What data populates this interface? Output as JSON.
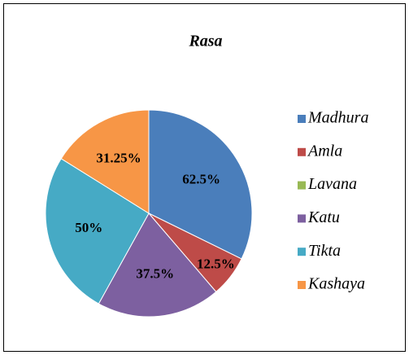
{
  "chart_data": {
    "type": "pie",
    "title": "Rasa",
    "categories": [
      "Madhura",
      "Amla",
      "Lavana",
      "Katu",
      "Tikta",
      "Kashaya"
    ],
    "values": [
      62.5,
      12.5,
      0,
      37.5,
      50,
      31.25
    ],
    "value_labels": [
      "62.5%",
      "12.5%",
      null,
      "37.5%",
      "50%",
      "31.25%"
    ],
    "colors": [
      "#4a7ebb",
      "#be4b48",
      "#98b954",
      "#7d60a0",
      "#46aac5",
      "#f79646"
    ],
    "legend": "right"
  }
}
